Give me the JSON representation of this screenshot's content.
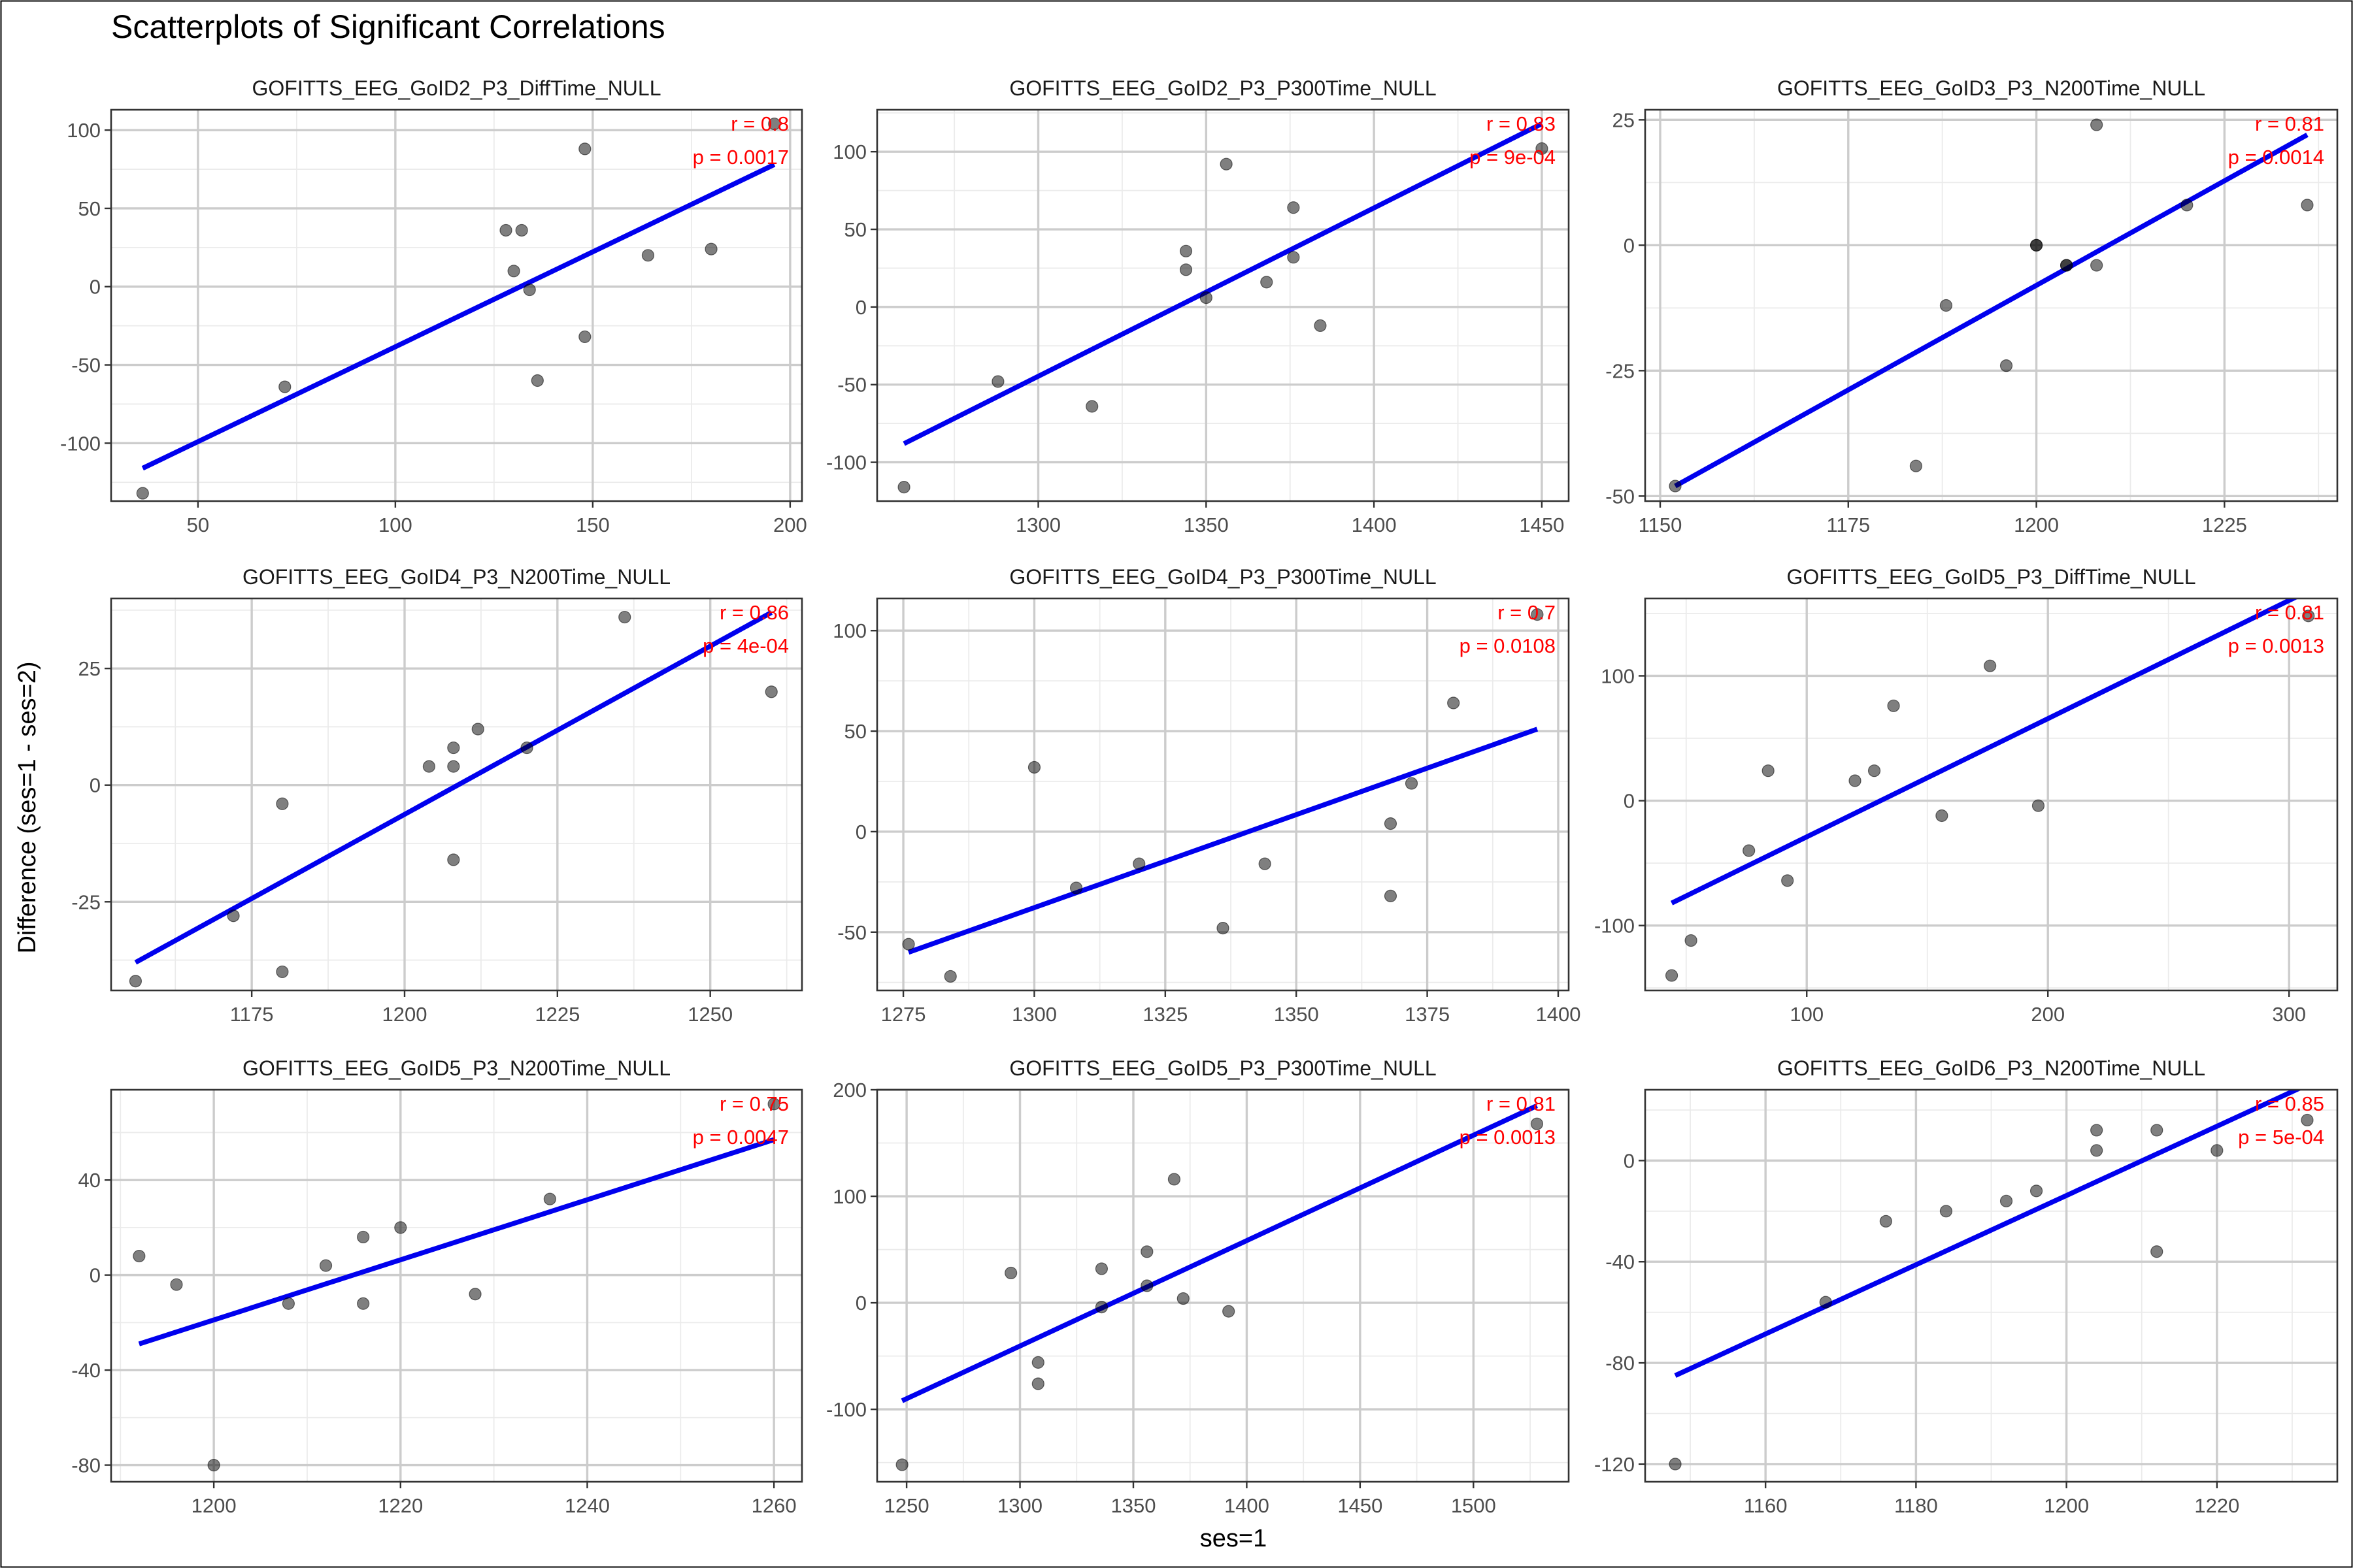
{
  "title": "Scatterplots of Significant Correlations",
  "xlabel": "ses=1",
  "ylabel": "Difference (ses=1 - ses=2)",
  "colors": {
    "points": "#000000",
    "fit_line": "#0000ee",
    "annotation": "#ff0000"
  },
  "chart_data": [
    {
      "type": "scatter",
      "title": "GOFITTS_EEG_GoID2_P3_DiffTime_NULL",
      "r": "r = 0.8",
      "p": "p = 0.0017",
      "xlim": [
        28,
        203
      ],
      "ylim": [
        -137,
        113
      ],
      "xticks": [
        50,
        100,
        150,
        200
      ],
      "yticks": [
        -100,
        -50,
        0,
        50,
        100
      ],
      "xticks_text": [
        "50",
        "100",
        "150",
        "200"
      ],
      "yticks_text": [
        "-100",
        "-50",
        "0",
        "50",
        "100"
      ],
      "x": [
        36,
        72,
        128,
        130,
        132,
        134,
        136,
        148,
        148,
        164,
        180,
        196
      ],
      "y": [
        -132,
        -64,
        36,
        10,
        36,
        -2,
        -60,
        88,
        -32,
        20,
        24,
        104
      ],
      "fit": [
        [
          36,
          -116
        ],
        [
          196,
          78
        ]
      ]
    },
    {
      "type": "scatter",
      "title": "GOFITTS_EEG_GoID2_P3_P300Time_NULL",
      "r": "r = 0.83",
      "p": "p = 9e-04",
      "xlim": [
        1252,
        1458
      ],
      "ylim": [
        -125,
        127
      ],
      "xticks": [
        1300,
        1350,
        1400,
        1450
      ],
      "yticks": [
        -100,
        -50,
        0,
        50,
        100
      ],
      "xticks_text": [
        "1300",
        "1350",
        "1400",
        "1450"
      ],
      "yticks_text": [
        "-100",
        "-50",
        "0",
        "50",
        "100"
      ],
      "x": [
        1260,
        1288,
        1316,
        1344,
        1344,
        1350,
        1356,
        1368,
        1376,
        1376,
        1384,
        1450
      ],
      "y": [
        -116,
        -48,
        -64,
        36,
        24,
        6,
        92,
        16,
        64,
        32,
        -12,
        102
      ],
      "fit": [
        [
          1260,
          -88
        ],
        [
          1450,
          118
        ]
      ]
    },
    {
      "type": "scatter",
      "title": "GOFITTS_EEG_GoID3_P3_N200Time_NULL",
      "r": "r = 0.81",
      "p": "p = 0.0014",
      "xlim": [
        1148,
        1240
      ],
      "ylim": [
        -51,
        27
      ],
      "xticks": [
        1150,
        1175,
        1200,
        1225
      ],
      "yticks": [
        -50,
        -25,
        0,
        25
      ],
      "xticks_text": [
        "1150",
        "1175",
        "1200",
        "1225"
      ],
      "yticks_text": [
        "-50",
        "-25",
        "0",
        "25"
      ],
      "x": [
        1152,
        1184,
        1188,
        1196,
        1200,
        1200,
        1204,
        1204,
        1208,
        1208,
        1220,
        1236
      ],
      "y": [
        -48,
        -44,
        -12,
        -24,
        0,
        0,
        -4,
        -4,
        24,
        -4,
        8,
        8
      ],
      "fit": [
        [
          1152,
          -48
        ],
        [
          1236,
          22
        ]
      ]
    },
    {
      "type": "scatter",
      "title": "GOFITTS_EEG_GoID4_P3_N200Time_NULL",
      "r": "r = 0.86",
      "p": "p = 4e-04",
      "xlim": [
        1152,
        1265
      ],
      "ylim": [
        -44,
        40
      ],
      "xticks": [
        1175,
        1200,
        1225,
        1250
      ],
      "yticks": [
        -25,
        0,
        25
      ],
      "xticks_text": [
        "1175",
        "1200",
        "1225",
        "1250"
      ],
      "yticks_text": [
        "-25",
        "0",
        "25"
      ],
      "x": [
        1156,
        1172,
        1180,
        1180,
        1204,
        1208,
        1208,
        1208,
        1212,
        1220,
        1236,
        1260
      ],
      "y": [
        -42,
        -28,
        -4,
        -40,
        4,
        8,
        4,
        -16,
        12,
        8,
        36,
        20
      ],
      "fit": [
        [
          1156,
          -38
        ],
        [
          1260,
          37
        ]
      ]
    },
    {
      "type": "scatter",
      "title": "GOFITTS_EEG_GoID4_P3_P300Time_NULL",
      "r": "r = 0.7",
      "p": "p = 0.0108",
      "xlim": [
        1270,
        1402
      ],
      "ylim": [
        -79,
        116
      ],
      "xticks": [
        1275,
        1300,
        1325,
        1350,
        1375,
        1400
      ],
      "yticks": [
        -50,
        0,
        50,
        100
      ],
      "xticks_text": [
        "1275",
        "1300",
        "1325",
        "1350",
        "1375",
        "1400"
      ],
      "yticks_text": [
        "-50",
        "0",
        "50",
        "100"
      ],
      "x": [
        1276,
        1284,
        1300,
        1308,
        1320,
        1336,
        1344,
        1368,
        1368,
        1372,
        1380,
        1396
      ],
      "y": [
        -56,
        -72,
        32,
        -28,
        -16,
        -48,
        -16,
        4,
        -32,
        24,
        64,
        108
      ],
      "fit": [
        [
          1276,
          -60
        ],
        [
          1396,
          51
        ]
      ]
    },
    {
      "type": "scatter",
      "title": "GOFITTS_EEG_GoID5_P3_DiffTime_NULL",
      "r": "r = 0.81",
      "p": "p = 0.0013",
      "xlim": [
        33,
        320
      ],
      "ylim": [
        -152,
        162
      ],
      "xticks": [
        100,
        200,
        300
      ],
      "yticks": [
        -100,
        0,
        100
      ],
      "xticks_text": [
        "100",
        "200",
        "300"
      ],
      "yticks_text": [
        "-100",
        "0",
        "100"
      ],
      "x": [
        44,
        52,
        76,
        84,
        92,
        120,
        128,
        136,
        156,
        176,
        196,
        308
      ],
      "y": [
        -140,
        -112,
        -40,
        24,
        -64,
        16,
        24,
        76,
        -12,
        108,
        -4,
        148
      ],
      "fit": [
        [
          44,
          -82
        ],
        [
          308,
          168
        ]
      ]
    },
    {
      "type": "scatter",
      "title": "GOFITTS_EEG_GoID5_P3_N200Time_NULL",
      "r": "r = 0.75",
      "p": "p = 0.0047",
      "xlim": [
        1189,
        1263
      ],
      "ylim": [
        -87,
        78
      ],
      "xticks": [
        1200,
        1220,
        1240,
        1260
      ],
      "yticks": [
        -80,
        -40,
        0,
        40
      ],
      "xticks_text": [
        "1200",
        "1220",
        "1240",
        "1260"
      ],
      "yticks_text": [
        "-80",
        "-40",
        "0",
        "40"
      ],
      "x": [
        1192,
        1196,
        1200,
        1208,
        1212,
        1216,
        1216,
        1220,
        1228,
        1236,
        1260
      ],
      "y": [
        8,
        -4,
        -80,
        -12,
        4,
        16,
        -12,
        20,
        -8,
        32,
        72
      ],
      "fit": [
        [
          1192,
          -29
        ],
        [
          1260,
          57
        ]
      ]
    },
    {
      "type": "scatter",
      "title": "GOFITTS_EEG_GoID5_P3_P300Time_NULL",
      "r": "r = 0.81",
      "p": "p = 0.0013",
      "xlim": [
        1237,
        1542
      ],
      "ylim": [
        -168,
        200
      ],
      "xticks": [
        1250,
        1300,
        1350,
        1400,
        1450,
        1500
      ],
      "yticks": [
        -100,
        0,
        100,
        200
      ],
      "xticks_text": [
        "1250",
        "1300",
        "1350",
        "1400",
        "1450",
        "1500"
      ],
      "yticks_text": [
        "-100",
        "0",
        "100",
        "200"
      ],
      "x": [
        1248,
        1296,
        1308,
        1308,
        1336,
        1336,
        1356,
        1356,
        1368,
        1372,
        1392,
        1528
      ],
      "y": [
        -152,
        28,
        -56,
        -76,
        -4,
        32,
        16,
        48,
        116,
        4,
        -8,
        168
      ],
      "fit": [
        [
          1248,
          -92
        ],
        [
          1528,
          185
        ]
      ]
    },
    {
      "type": "scatter",
      "title": "GOFITTS_EEG_GoID6_P3_N200Time_NULL",
      "r": "r = 0.85",
      "p": "p = 5e-04",
      "xlim": [
        1144,
        1236
      ],
      "ylim": [
        -127,
        28
      ],
      "xticks": [
        1160,
        1180,
        1200,
        1220
      ],
      "yticks": [
        -120,
        -80,
        -40,
        0
      ],
      "xticks_text": [
        "1160",
        "1180",
        "1200",
        "1220"
      ],
      "yticks_text": [
        "-120",
        "-80",
        "-40",
        "0"
      ],
      "x": [
        1148,
        1168,
        1176,
        1184,
        1192,
        1196,
        1204,
        1204,
        1212,
        1212,
        1220,
        1232
      ],
      "y": [
        -120,
        -56,
        -24,
        -20,
        -16,
        -12,
        12,
        4,
        12,
        -36,
        4,
        16
      ],
      "fit": [
        [
          1148,
          -85
        ],
        [
          1232,
          30
        ]
      ]
    }
  ]
}
